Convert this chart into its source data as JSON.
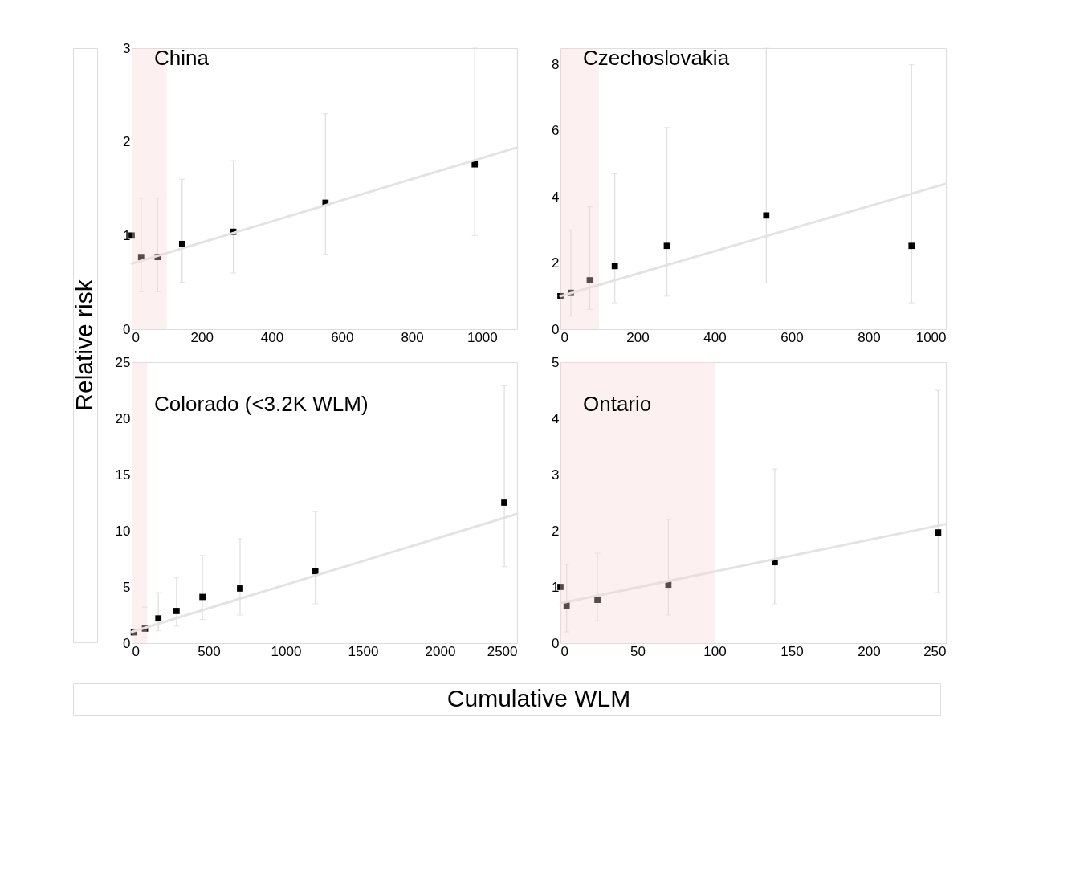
{
  "chart_data": [
    {
      "type": "scatter",
      "title": "China",
      "ylabel": "Relative risk",
      "xlim": [
        0,
        1100
      ],
      "xticks": [
        0,
        200,
        400,
        600,
        800,
        1000
      ],
      "ylim": [
        0,
        3
      ],
      "yticks": [
        0,
        1,
        2,
        3
      ],
      "grid": false,
      "series": [
        {
          "color": "#000000",
          "marker": "square",
          "x": [
            0,
            27,
            74,
            144,
            290,
            553,
            979
          ],
          "values": [
            1.0,
            0.77,
            0.77,
            0.91,
            1.04,
            1.35,
            1.76
          ],
          "errors": [
            null,
            [
              0.4,
              1.4
            ],
            [
              0.4,
              1.4
            ],
            [
              0.5,
              1.6
            ],
            [
              0.6,
              1.8
            ],
            [
              0.8,
              2.3
            ],
            [
              1.0,
              3.0
            ]
          ]
        },
        {
          "type": "line",
          "color": "#e3e3e3",
          "x": [
            0,
            1100
          ],
          "values": [
            0.7,
            1.94
          ]
        }
      ],
      "bands": [
        {
          "axis": "x",
          "from": 0,
          "to": 100,
          "color": "#f6d5d5"
        }
      ]
    },
    {
      "type": "scatter",
      "title": "Czechoslovakia",
      "xlim": [
        0,
        1000
      ],
      "xticks": [
        0,
        200,
        400,
        600,
        800,
        1000
      ],
      "ylim": [
        0,
        8.5
      ],
      "yticks": [
        0,
        2,
        4,
        6,
        8
      ],
      "grid": false,
      "series": [
        {
          "color": "#000000",
          "marker": "square",
          "x": [
            0,
            27,
            76,
            141,
            276,
            534,
            911
          ],
          "values": [
            1.0,
            1.1,
            1.48,
            1.91,
            2.52,
            3.44,
            2.52
          ],
          "errors": [
            null,
            [
              0.4,
              3.0
            ],
            [
              0.6,
              3.7
            ],
            [
              0.8,
              4.7
            ],
            [
              1.0,
              6.1
            ],
            [
              1.4,
              8.5
            ],
            [
              0.8,
              8.0
            ]
          ]
        },
        {
          "type": "line",
          "color": "#e3e3e3",
          "x": [
            0,
            1000
          ],
          "values": [
            1.0,
            4.4
          ]
        }
      ],
      "bands": [
        {
          "axis": "x",
          "from": 0,
          "to": 100,
          "color": "#f6d5d5"
        }
      ]
    },
    {
      "type": "scatter",
      "title": "Colorado (<3.2K WLM)",
      "xlabel": "Cumulative WLM",
      "xlim": [
        0,
        2500
      ],
      "xticks": [
        0,
        500,
        1000,
        1500,
        2000,
        2500
      ],
      "ylim": [
        0,
        25
      ],
      "yticks": [
        0,
        5,
        10,
        15,
        20,
        25
      ],
      "grid": false,
      "series": [
        {
          "color": "#000000",
          "marker": "square",
          "x": [
            14,
            86,
            173,
            291,
            459,
            703,
            1191,
            2417
          ],
          "values": [
            0.96,
            1.29,
            2.2,
            2.86,
            4.11,
            4.86,
            6.41,
            12.5
          ],
          "errors": [
            null,
            [
              0.5,
              3.2
            ],
            [
              1.1,
              4.5
            ],
            [
              1.5,
              5.8
            ],
            [
              2.1,
              7.8
            ],
            [
              2.5,
              9.3
            ],
            [
              3.5,
              11.7
            ],
            [
              6.8,
              22.9
            ]
          ]
        },
        {
          "type": "line",
          "color": "#e3e3e3",
          "x": [
            0,
            2500
          ],
          "values": [
            1.0,
            11.5
          ]
        }
      ],
      "bands": [
        {
          "axis": "x",
          "from": 0,
          "to": 100,
          "color": "#f6d5d5"
        }
      ]
    },
    {
      "type": "scatter",
      "title": "Ontario",
      "xlim": [
        0,
        250
      ],
      "xticks": [
        0,
        50,
        100,
        150,
        200,
        250
      ],
      "ylim": [
        0,
        5
      ],
      "yticks": [
        0,
        1,
        2,
        3,
        4,
        5
      ],
      "grid": false,
      "series": [
        {
          "color": "#000000",
          "marker": "square",
          "x": [
            0,
            4,
            24,
            70,
            139,
            245
          ],
          "values": [
            1.0,
            0.67,
            0.77,
            1.04,
            1.44,
            1.97
          ],
          "errors": [
            null,
            [
              0.2,
              1.4
            ],
            [
              0.4,
              1.6
            ],
            [
              0.5,
              2.2
            ],
            [
              0.7,
              3.1
            ],
            [
              0.9,
              4.5
            ]
          ]
        },
        {
          "type": "line",
          "color": "#e3e3e3",
          "x": [
            0,
            250
          ],
          "values": [
            0.71,
            2.12
          ]
        }
      ],
      "bands": [
        {
          "axis": "x",
          "from": 0,
          "to": 100,
          "color": "#f6d5d5"
        }
      ]
    }
  ]
}
